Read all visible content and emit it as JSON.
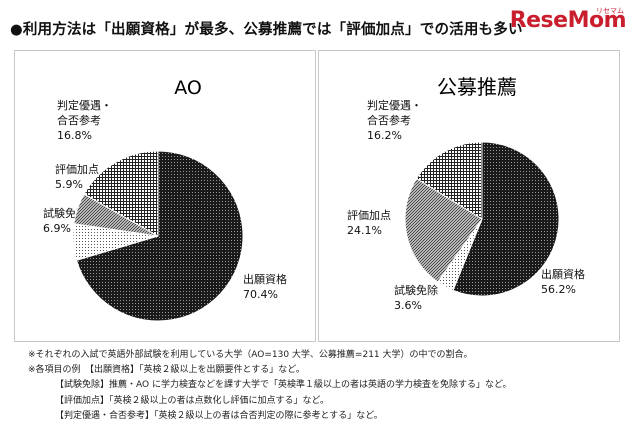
{
  "headline": "●利用方法は「出願資格」が最多、公募推薦では「評価加点」での活用も多い",
  "logo": {
    "text": "ReseMom",
    "kana": "リセマム"
  },
  "chart_data": [
    {
      "type": "pie",
      "title": "AO",
      "slices": [
        {
          "label": [
            "出願資格"
          ],
          "value": 70.4,
          "value_text": "70.4%",
          "fill": "dense-grid"
        },
        {
          "label": [
            "試験免除"
          ],
          "value": 6.9,
          "value_text": "6.9%",
          "fill": "sparse-dots"
        },
        {
          "label": [
            "評価加点"
          ],
          "value": 5.9,
          "value_text": "5.9%",
          "fill": "diagonal"
        },
        {
          "label": [
            "判定優遇・",
            "合否参考"
          ],
          "value": 16.8,
          "value_text": "16.8%",
          "fill": "open-grid"
        }
      ]
    },
    {
      "type": "pie",
      "title": "公募推薦",
      "slices": [
        {
          "label": [
            "出願資格"
          ],
          "value": 56.2,
          "value_text": "56.2%",
          "fill": "dense-grid"
        },
        {
          "label": [
            "試験免除"
          ],
          "value": 3.6,
          "value_text": "3.6%",
          "fill": "sparse-dots"
        },
        {
          "label": [
            "評価加点"
          ],
          "value": 24.1,
          "value_text": "24.1%",
          "fill": "diagonal"
        },
        {
          "label": [
            "判定優遇・",
            "合否参考"
          ],
          "value": 16.2,
          "value_text": "16.2%",
          "fill": "open-grid"
        }
      ]
    }
  ],
  "notes": {
    "line1": "※それぞれの入試で英語外部試験を利用している大学（AO=130 大学、公募推薦=211 大学）の中での割合。",
    "line2": "※各項目の例　【出願資格】「英検２級以上を出願要件とする」など。",
    "line3": "【試験免除】推薦・AO に学力検査などを課す大学で「英検準１級以上の者は英語の学力検査を免除する」など。",
    "line4": "【評価加点】「英検２級以上の者は点数化し評価に加点する」など。",
    "line5": "【判定優遇・合否参考】「英検２級以上の者は合否判定の際に参考とする」など。"
  }
}
